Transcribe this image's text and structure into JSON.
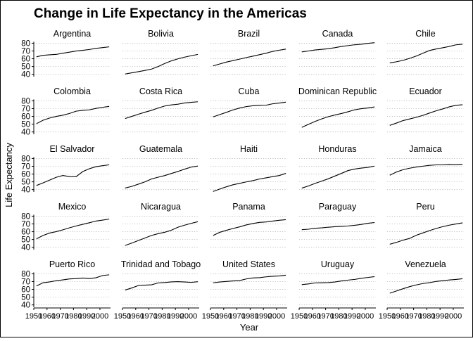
{
  "chart_data": {
    "type": "line",
    "title": "Change in Life Expectancy in the Americas",
    "xlabel": "Year",
    "ylabel": "Life Expectancy",
    "x": [
      1952,
      1957,
      1962,
      1967,
      1972,
      1977,
      1982,
      1987,
      1992,
      1997,
      2002,
      2007
    ],
    "xlim": [
      1950,
      2008
    ],
    "ylim": [
      37,
      84
    ],
    "xticks": [
      1950,
      1960,
      1970,
      1980,
      1990,
      2000
    ],
    "xtick_labels": [
      "1950",
      "1960",
      "1970",
      "1980",
      "1990",
      "2000"
    ],
    "yticks": [
      40,
      50,
      60,
      70,
      80
    ],
    "ytick_labels": [
      "40",
      "50",
      "60",
      "70",
      "80"
    ],
    "facet_columns": 5,
    "grid": "horizontal dotted",
    "line_color": "#000000",
    "series": [
      {
        "name": "Argentina",
        "values": [
          62.5,
          64.4,
          65.1,
          65.6,
          67.1,
          68.5,
          69.9,
          70.8,
          71.9,
          73.3,
          74.3,
          75.3
        ]
      },
      {
        "name": "Bolivia",
        "values": [
          40.4,
          41.9,
          43.4,
          45.0,
          46.7,
          50.0,
          53.9,
          57.3,
          59.96,
          62.1,
          63.9,
          65.6
        ]
      },
      {
        "name": "Brazil",
        "values": [
          50.9,
          53.3,
          55.7,
          57.6,
          59.5,
          61.5,
          63.3,
          65.2,
          67.1,
          69.4,
          71.0,
          72.4
        ]
      },
      {
        "name": "Canada",
        "values": [
          68.8,
          70.0,
          71.3,
          72.1,
          72.9,
          74.2,
          75.8,
          76.9,
          78.0,
          78.6,
          79.8,
          80.7
        ]
      },
      {
        "name": "Chile",
        "values": [
          54.7,
          56.1,
          57.9,
          60.5,
          63.4,
          67.1,
          70.6,
          72.5,
          74.1,
          75.8,
          77.9,
          78.6
        ]
      },
      {
        "name": "Colombia",
        "values": [
          50.6,
          55.1,
          57.9,
          60.0,
          61.6,
          63.8,
          66.7,
          67.8,
          68.4,
          70.3,
          71.7,
          72.9
        ]
      },
      {
        "name": "Costa Rica",
        "values": [
          57.2,
          60.0,
          62.8,
          65.4,
          67.8,
          70.8,
          73.4,
          74.8,
          75.7,
          77.3,
          78.1,
          78.8
        ]
      },
      {
        "name": "Cuba",
        "values": [
          59.4,
          62.3,
          65.2,
          68.3,
          70.7,
          72.6,
          73.7,
          74.2,
          74.4,
          76.2,
          77.2,
          78.3
        ]
      },
      {
        "name": "Dominican Republic",
        "values": [
          45.9,
          49.8,
          53.5,
          56.8,
          59.6,
          61.8,
          63.7,
          66.0,
          68.5,
          69.96,
          70.8,
          72.2
        ]
      },
      {
        "name": "Ecuador",
        "values": [
          48.4,
          51.4,
          54.6,
          56.7,
          58.8,
          61.3,
          64.3,
          67.2,
          69.6,
          72.3,
          74.2,
          75.0
        ]
      },
      {
        "name": "El Salvador",
        "values": [
          45.3,
          48.6,
          52.3,
          55.9,
          58.2,
          56.7,
          56.6,
          63.2,
          66.8,
          69.5,
          70.7,
          71.9
        ]
      },
      {
        "name": "Guatemala",
        "values": [
          42.0,
          44.1,
          47.0,
          50.0,
          53.7,
          56.0,
          58.1,
          60.8,
          63.4,
          66.3,
          68.98,
          70.3
        ]
      },
      {
        "name": "Haiti",
        "values": [
          37.6,
          40.7,
          43.6,
          46.2,
          48.0,
          49.9,
          51.5,
          53.6,
          55.1,
          56.7,
          58.1,
          60.9
        ]
      },
      {
        "name": "Honduras",
        "values": [
          41.9,
          44.7,
          48.0,
          50.9,
          53.9,
          57.4,
          60.9,
          64.5,
          66.4,
          67.7,
          68.6,
          70.2
        ]
      },
      {
        "name": "Jamaica",
        "values": [
          58.5,
          62.6,
          65.6,
          67.5,
          69.0,
          70.1,
          71.2,
          71.8,
          71.8,
          72.3,
          72.0,
          72.6
        ]
      },
      {
        "name": "Mexico",
        "values": [
          50.8,
          55.2,
          58.3,
          60.1,
          62.4,
          65.0,
          67.4,
          69.5,
          71.5,
          73.7,
          74.9,
          76.2
        ]
      },
      {
        "name": "Nicaragua",
        "values": [
          42.3,
          45.4,
          48.6,
          51.9,
          55.2,
          57.5,
          59.3,
          62.0,
          65.8,
          68.4,
          70.8,
          72.9
        ]
      },
      {
        "name": "Panama",
        "values": [
          55.2,
          59.2,
          61.8,
          64.1,
          66.2,
          68.7,
          70.5,
          72.0,
          72.5,
          73.7,
          74.7,
          75.5
        ]
      },
      {
        "name": "Paraguay",
        "values": [
          62.6,
          63.2,
          64.4,
          64.95,
          65.8,
          66.4,
          66.9,
          67.4,
          68.2,
          69.4,
          70.8,
          71.8
        ]
      },
      {
        "name": "Peru",
        "values": [
          43.9,
          46.3,
          49.1,
          51.4,
          55.4,
          58.4,
          61.4,
          64.1,
          66.5,
          68.4,
          69.9,
          71.4
        ]
      },
      {
        "name": "Puerto Rico",
        "values": [
          64.3,
          68.5,
          69.6,
          71.1,
          72.2,
          73.4,
          73.75,
          74.6,
          73.9,
          74.9,
          77.8,
          78.7
        ]
      },
      {
        "name": "Trinidad and Tobago",
        "values": [
          59.1,
          61.8,
          64.9,
          65.4,
          65.9,
          68.3,
          68.8,
          69.6,
          69.9,
          69.5,
          68.98,
          69.8
        ]
      },
      {
        "name": "United States",
        "values": [
          68.4,
          69.5,
          70.2,
          70.8,
          71.3,
          73.4,
          74.7,
          75.0,
          76.1,
          76.8,
          77.3,
          78.2
        ]
      },
      {
        "name": "Uruguay",
        "values": [
          66.1,
          67.0,
          68.3,
          68.5,
          68.7,
          69.5,
          70.8,
          71.9,
          72.8,
          74.2,
          75.3,
          76.4
        ]
      },
      {
        "name": "Venezuela",
        "values": [
          55.1,
          57.9,
          60.8,
          63.5,
          65.7,
          67.5,
          68.6,
          70.2,
          71.2,
          72.1,
          72.8,
          73.7
        ]
      }
    ]
  }
}
